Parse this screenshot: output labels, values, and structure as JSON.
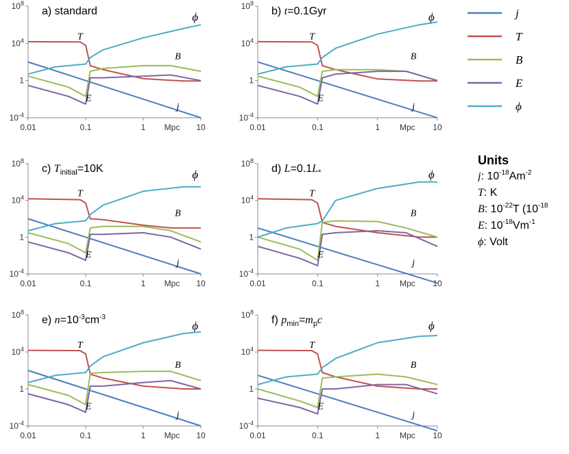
{
  "chart_data": [
    {
      "type": "line",
      "title": "a) standard",
      "xlabel": "Mpc",
      "x_scale": "log",
      "y_scale": "log",
      "xlim": [
        0.01,
        10
      ],
      "ylim": [
        0.0001,
        100000000
      ],
      "x_ticks": [
        "0.01",
        "0.1",
        "1",
        "10"
      ],
      "y_ticks": [
        "10^-4",
        "1",
        "10^4",
        "10^8"
      ],
      "series": [
        {
          "name": "j",
          "x": [
            0.01,
            0.1,
            1,
            10
          ],
          "y": [
            100,
            1,
            0.01,
            0.0001
          ]
        },
        {
          "name": "T",
          "x": [
            0.01,
            0.08,
            0.1,
            0.12,
            0.2,
            1,
            5,
            10
          ],
          "y": [
            15000,
            14000,
            6000,
            40,
            15,
            1.6,
            0.9,
            0.9
          ]
        },
        {
          "name": "B",
          "x": [
            0.01,
            0.05,
            0.1,
            0.12,
            0.2,
            1,
            3,
            10
          ],
          "y": [
            3,
            0.2,
            0.02,
            10,
            20,
            40,
            40,
            10
          ]
        },
        {
          "name": "E",
          "x": [
            0.01,
            0.05,
            0.1,
            0.12,
            0.2,
            1,
            3,
            10
          ],
          "y": [
            0.3,
            0.02,
            0.003,
            2,
            2,
            3,
            4,
            1
          ]
        },
        {
          "name": "phi",
          "x": [
            0.01,
            0.03,
            0.1,
            0.12,
            0.2,
            1,
            5,
            10
          ],
          "y": [
            5,
            30,
            60,
            300,
            2000,
            40000,
            400000,
            1000000
          ]
        }
      ],
      "annotations": [
        "T",
        "B",
        "E",
        "j",
        "phi"
      ]
    },
    {
      "type": "line",
      "title": "b) t=0.1Gyr",
      "xlabel": "Mpc",
      "x_scale": "log",
      "y_scale": "log",
      "xlim": [
        0.01,
        10
      ],
      "ylim": [
        0.0001,
        100000000
      ],
      "x_ticks": [
        "0.01",
        "0.1",
        "1",
        "10"
      ],
      "y_ticks": [
        "10^-4",
        "1",
        "10^4",
        "10^8"
      ],
      "series": [
        {
          "name": "j",
          "x": [
            0.01,
            0.1,
            1,
            10
          ],
          "y": [
            100,
            1,
            0.01,
            0.0001
          ]
        },
        {
          "name": "T",
          "x": [
            0.01,
            0.08,
            0.1,
            0.12,
            0.2,
            1,
            5,
            10
          ],
          "y": [
            15000,
            14000,
            6000,
            40,
            15,
            1.5,
            0.9,
            0.9
          ]
        },
        {
          "name": "B",
          "x": [
            0.01,
            0.05,
            0.1,
            0.12,
            0.2,
            1,
            3,
            10
          ],
          "y": [
            3,
            0.2,
            0.02,
            10,
            15,
            15,
            10,
            1
          ]
        },
        {
          "name": "E",
          "x": [
            0.01,
            0.05,
            0.1,
            0.12,
            0.2,
            1,
            3,
            10
          ],
          "y": [
            0.3,
            0.02,
            0.003,
            2,
            5,
            10,
            10,
            1
          ]
        },
        {
          "name": "phi",
          "x": [
            0.01,
            0.03,
            0.1,
            0.12,
            0.2,
            1,
            5,
            10
          ],
          "y": [
            5,
            30,
            60,
            300,
            3000,
            100000,
            1000000,
            2000000
          ]
        }
      ],
      "annotations": [
        "T",
        "B",
        "E",
        "j",
        "phi"
      ]
    },
    {
      "type": "line",
      "title": "c) T_initial=10K",
      "xlabel": "Mpc",
      "x_scale": "log",
      "y_scale": "log",
      "xlim": [
        0.01,
        10
      ],
      "ylim": [
        0.0001,
        100000000
      ],
      "x_ticks": [
        "0.01",
        "0.1",
        "1",
        "10"
      ],
      "y_ticks": [
        "10^-4",
        "1",
        "10^4",
        "10^8"
      ],
      "series": [
        {
          "name": "j",
          "x": [
            0.01,
            0.1,
            1,
            10
          ],
          "y": [
            100,
            1,
            0.01,
            0.0001
          ]
        },
        {
          "name": "T",
          "x": [
            0.01,
            0.08,
            0.1,
            0.12,
            0.2,
            1,
            3,
            10
          ],
          "y": [
            15000,
            12000,
            5000,
            100,
            80,
            20,
            10,
            10
          ]
        },
        {
          "name": "B",
          "x": [
            0.01,
            0.05,
            0.1,
            0.12,
            0.2,
            1,
            3,
            10
          ],
          "y": [
            3,
            0.2,
            0.02,
            10,
            15,
            15,
            5,
            0.3
          ]
        },
        {
          "name": "E",
          "x": [
            0.01,
            0.05,
            0.1,
            0.12,
            0.2,
            1,
            3,
            10
          ],
          "y": [
            0.3,
            0.02,
            0.003,
            2,
            2,
            3,
            1,
            0.05
          ]
        },
        {
          "name": "phi",
          "x": [
            0.01,
            0.03,
            0.1,
            0.12,
            0.2,
            1,
            5,
            10
          ],
          "y": [
            5,
            30,
            60,
            300,
            3000,
            100000,
            300000,
            300000
          ]
        }
      ],
      "annotations": [
        "T",
        "B",
        "E",
        "j",
        "phi"
      ]
    },
    {
      "type": "line",
      "title": "d) L=0.1L*",
      "xlabel": "Mpc",
      "x_scale": "log",
      "y_scale": "log",
      "xlim": [
        0.01,
        10
      ],
      "ylim": [
        0.0001,
        100000000
      ],
      "x_ticks": [
        "0.01",
        "0.1",
        "1",
        "10"
      ],
      "y_ticks": [
        "10^-4",
        "1",
        "10^4",
        "10^8"
      ],
      "series": [
        {
          "name": "j",
          "x": [
            0.01,
            0.1,
            1,
            10
          ],
          "y": [
            10,
            0.1,
            0.001,
            1e-05
          ]
        },
        {
          "name": "T",
          "x": [
            0.01,
            0.08,
            0.1,
            0.12,
            0.2,
            1,
            5,
            10
          ],
          "y": [
            15000,
            12000,
            5000,
            40,
            15,
            3,
            1,
            1
          ]
        },
        {
          "name": "B",
          "x": [
            0.01,
            0.05,
            0.1,
            0.12,
            0.2,
            1,
            3,
            10
          ],
          "y": [
            1,
            0.05,
            0.003,
            40,
            60,
            50,
            10,
            1
          ]
        },
        {
          "name": "E",
          "x": [
            0.01,
            0.05,
            0.1,
            0.12,
            0.2,
            1,
            3,
            10
          ],
          "y": [
            0.1,
            0.005,
            0.0008,
            2,
            3,
            5,
            3,
            0.1
          ]
        },
        {
          "name": "phi",
          "x": [
            0.01,
            0.03,
            0.1,
            0.12,
            0.2,
            1,
            5,
            10
          ],
          "y": [
            1,
            10,
            30,
            60,
            10000,
            200000,
            1000000,
            1000000
          ]
        }
      ],
      "annotations": [
        "T",
        "B",
        "E",
        "j",
        "phi"
      ]
    },
    {
      "type": "line",
      "title": "e) n=10^-3cm^-3",
      "xlabel": "Mpc",
      "x_scale": "log",
      "y_scale": "log",
      "xlim": [
        0.01,
        10
      ],
      "ylim": [
        0.0001,
        100000000
      ],
      "x_ticks": [
        "0.01",
        "0.1",
        "1",
        "10"
      ],
      "y_ticks": [
        "10^-4",
        "1",
        "10^4",
        "10^8"
      ],
      "series": [
        {
          "name": "j",
          "x": [
            0.01,
            0.1,
            1,
            10
          ],
          "y": [
            100,
            1,
            0.01,
            0.0001
          ]
        },
        {
          "name": "T",
          "x": [
            0.01,
            0.08,
            0.1,
            0.12,
            0.2,
            1,
            5,
            10
          ],
          "y": [
            15000,
            14000,
            6000,
            40,
            15,
            2,
            1,
            1
          ]
        },
        {
          "name": "B",
          "x": [
            0.01,
            0.05,
            0.1,
            0.12,
            0.2,
            1,
            3,
            10
          ],
          "y": [
            3,
            0.2,
            0.02,
            50,
            60,
            80,
            80,
            8
          ]
        },
        {
          "name": "E",
          "x": [
            0.01,
            0.05,
            0.1,
            0.12,
            0.2,
            1,
            3,
            10
          ],
          "y": [
            0.3,
            0.02,
            0.003,
            2,
            2,
            5,
            8,
            1
          ]
        },
        {
          "name": "phi",
          "x": [
            0.01,
            0.03,
            0.1,
            0.12,
            0.2,
            1,
            5,
            10
          ],
          "y": [
            5,
            30,
            60,
            300,
            3000,
            100000,
            1000000,
            1500000
          ]
        }
      ],
      "annotations": [
        "T",
        "B",
        "E",
        "j",
        "phi"
      ]
    },
    {
      "type": "line",
      "title": "f) p_min=m_pc",
      "xlabel": "Mpc",
      "x_scale": "log",
      "y_scale": "log",
      "xlim": [
        0.01,
        10
      ],
      "ylim": [
        0.0001,
        100000000
      ],
      "x_ticks": [
        "0.01",
        "0.1",
        "1",
        "10"
      ],
      "y_ticks": [
        "10^-4",
        "1",
        "10^4",
        "10^8"
      ],
      "series": [
        {
          "name": "j",
          "x": [
            0.01,
            0.1,
            1,
            10
          ],
          "y": [
            30,
            0.3,
            0.003,
            3e-05
          ]
        },
        {
          "name": "T",
          "x": [
            0.01,
            0.08,
            0.1,
            0.12,
            0.2,
            1,
            5,
            10
          ],
          "y": [
            15000,
            14000,
            6000,
            60,
            20,
            2,
            1,
            1
          ]
        },
        {
          "name": "B",
          "x": [
            0.01,
            0.05,
            0.1,
            0.12,
            0.2,
            1,
            3,
            10
          ],
          "y": [
            1,
            0.05,
            0.01,
            15,
            20,
            40,
            20,
            3
          ]
        },
        {
          "name": "E",
          "x": [
            0.01,
            0.05,
            0.1,
            0.12,
            0.2,
            1,
            3,
            10
          ],
          "y": [
            0.1,
            0.01,
            0.002,
            1,
            1,
            3,
            3,
            0.3
          ]
        },
        {
          "name": "phi",
          "x": [
            0.01,
            0.03,
            0.1,
            0.12,
            0.2,
            1,
            5,
            10
          ],
          "y": [
            3,
            20,
            40,
            200,
            2000,
            100000,
            500000,
            600000
          ]
        }
      ],
      "annotations": [
        "T",
        "B",
        "E",
        "j",
        "phi"
      ]
    }
  ],
  "legend": {
    "entries": [
      {
        "name": "j",
        "color": "#4a7ebb"
      },
      {
        "name": "T",
        "color": "#c0504d"
      },
      {
        "name": "B",
        "color": "#9bbb59"
      },
      {
        "name": "E",
        "color": "#8064a2"
      },
      {
        "name": "phi",
        "color": "#4bacc6"
      }
    ]
  },
  "units": {
    "title": "Units",
    "lines": [
      {
        "var": "j",
        "text": ": 10",
        "sup": "-18",
        "unit": "Am",
        "sup2": "-2"
      },
      {
        "var": "T",
        "text": ": K",
        "sup": "",
        "unit": "",
        "sup2": ""
      },
      {
        "var": "B",
        "text": ": 10",
        "sup": "-22",
        "unit": "T (10",
        "sup2": "-18"
      },
      {
        "var": "E",
        "text": ": 10",
        "sup": "-18",
        "unit": "Vm",
        "sup2": "-1"
      },
      {
        "var": "ϕ",
        "text": ": Volt",
        "sup": "",
        "unit": "",
        "sup2": ""
      }
    ]
  }
}
